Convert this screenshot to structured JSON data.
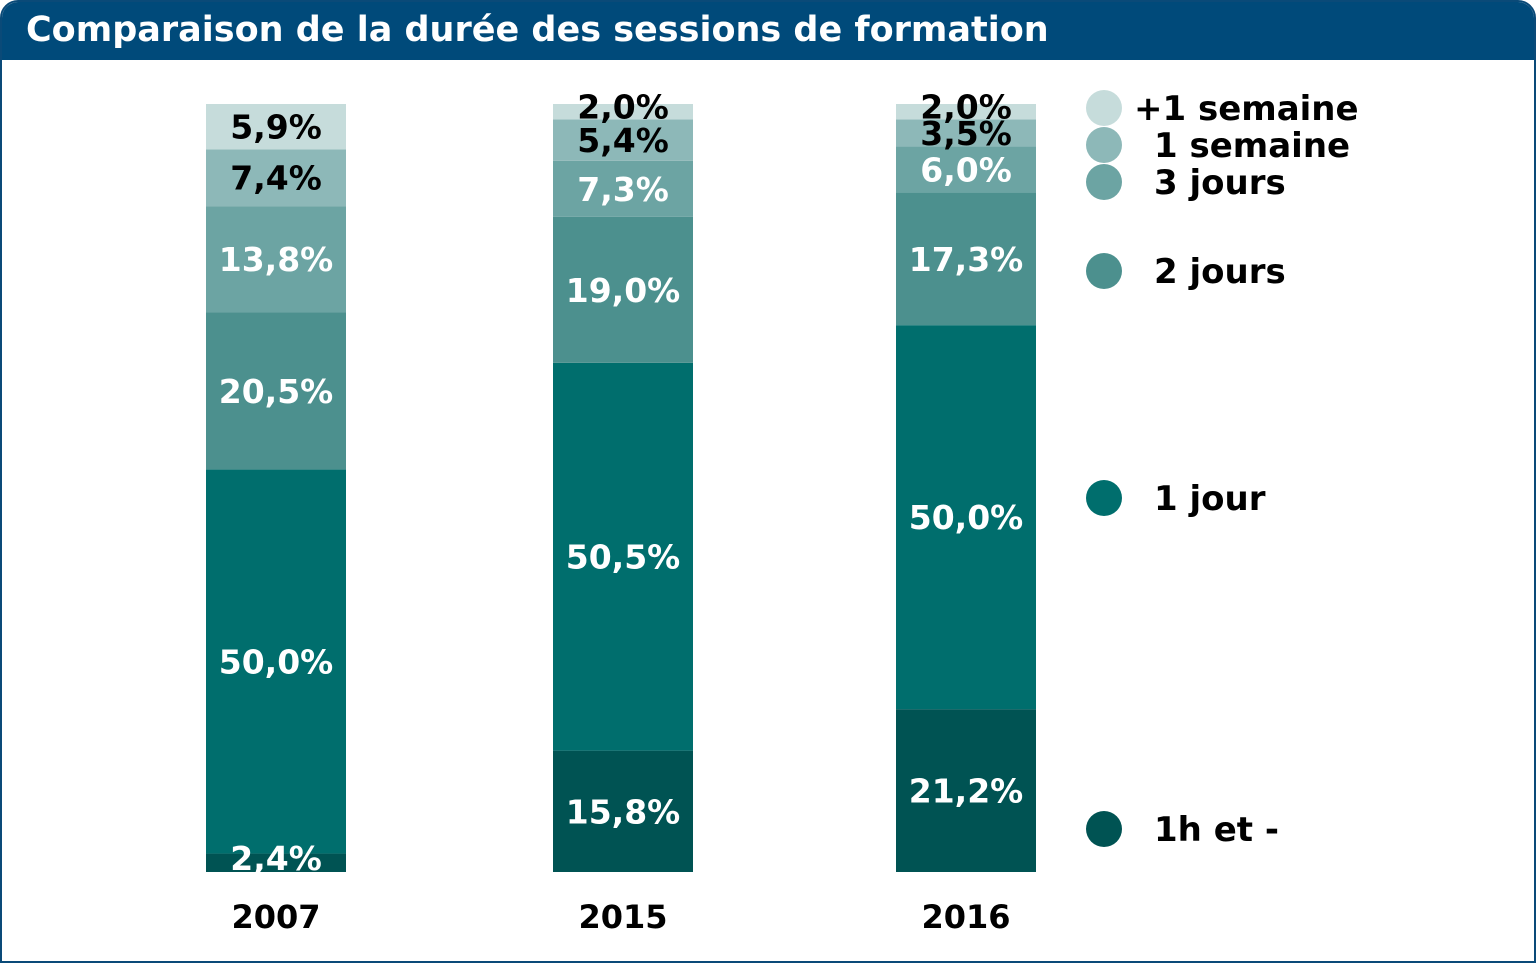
{
  "chart_data": {
    "type": "bar",
    "stacked": true,
    "title": "Comparaison de la durée des sessions de formation",
    "categories": [
      "2007",
      "2015",
      "2016"
    ],
    "series": [
      {
        "name": "1h et -",
        "color": "#005353",
        "values": [
          2.4,
          15.8,
          21.2
        ],
        "labels": [
          "2,4%",
          "15,8%",
          "21,2%"
        ]
      },
      {
        "name": "1 jour",
        "color": "#006e6d",
        "values": [
          50.0,
          50.5,
          50.0
        ],
        "labels": [
          "50,0%",
          "50,5%",
          "50,0%"
        ]
      },
      {
        "name": "2 jours",
        "color": "#4c908e",
        "values": [
          20.5,
          19.0,
          17.3
        ],
        "labels": [
          "20,5%",
          "19,0%",
          "17,3%"
        ]
      },
      {
        "name": "3 jours",
        "color": "#6ca4a3",
        "values": [
          13.8,
          7.3,
          6.0
        ],
        "labels": [
          "13,8%",
          "7,3%",
          "6,0%"
        ]
      },
      {
        "name": "1 semaine",
        "color": "#8db8b8",
        "values": [
          7.4,
          5.4,
          3.5
        ],
        "labels": [
          "7,4%",
          "5,4%",
          "3,5%"
        ]
      },
      {
        "name": "+1 semaine",
        "color": "#c6dcdb",
        "values": [
          5.9,
          2.0,
          2.0
        ],
        "labels": [
          "5,9%",
          "2,0%",
          "2,0%"
        ]
      }
    ],
    "ylim": [
      0,
      100
    ],
    "grid": false,
    "legend_position": "right"
  }
}
